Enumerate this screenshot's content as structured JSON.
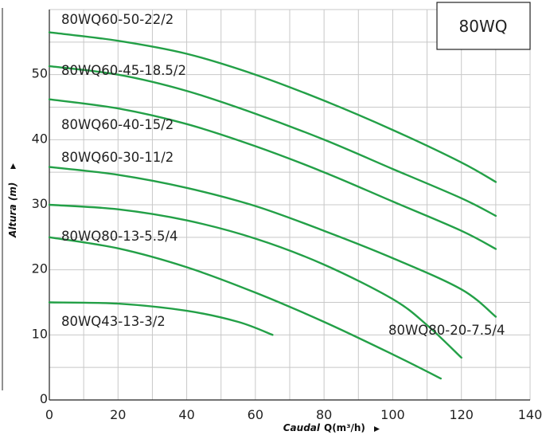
{
  "chart_data": {
    "type": "line",
    "title": "80WQ",
    "xlabel": "Caudal",
    "xlabel_unit": "Q(m³/h)",
    "ylabel": "Altura (m)",
    "xlim": [
      0,
      140
    ],
    "ylim": [
      0,
      60
    ],
    "xticks": [
      0,
      20,
      40,
      60,
      80,
      100,
      120,
      140
    ],
    "yticks": [
      0,
      10,
      20,
      30,
      40,
      50
    ],
    "grid": true,
    "series_color": "#23a047",
    "grid_color": "#c8c8c8",
    "series": [
      {
        "name": "80WQ60-50-22/2",
        "x": [
          0,
          20,
          40,
          60,
          80,
          100,
          120,
          130
        ],
        "y": [
          56.5,
          55.2,
          53.2,
          50.0,
          46.0,
          41.5,
          36.5,
          33.5
        ]
      },
      {
        "name": "80WQ60-45-18.5/2",
        "x": [
          0,
          20,
          40,
          60,
          80,
          100,
          120,
          130
        ],
        "y": [
          51.3,
          50.0,
          47.5,
          44.0,
          40.0,
          35.5,
          31.0,
          28.3
        ]
      },
      {
        "name": "80WQ60-40-15/2",
        "x": [
          0,
          20,
          40,
          60,
          80,
          100,
          120,
          130
        ],
        "y": [
          46.2,
          44.8,
          42.4,
          39.0,
          35.0,
          30.5,
          26.0,
          23.2
        ]
      },
      {
        "name": "80WQ60-30-11/2",
        "x": [
          0,
          20,
          40,
          60,
          80,
          100,
          120,
          130
        ],
        "y": [
          35.8,
          34.6,
          32.6,
          29.8,
          26.0,
          21.8,
          17.0,
          12.8
        ]
      },
      {
        "name": "80WQ80-20-7.5/4",
        "x": [
          0,
          20,
          40,
          60,
          80,
          100,
          110,
          120
        ],
        "y": [
          30.0,
          29.3,
          27.6,
          24.8,
          20.8,
          15.5,
          11.5,
          6.5
        ]
      },
      {
        "name": "80WQ80-13-5.5/4",
        "x": [
          0,
          20,
          40,
          60,
          80,
          100,
          114
        ],
        "y": [
          25.0,
          23.3,
          20.4,
          16.5,
          12.0,
          7.0,
          3.3
        ]
      },
      {
        "name": "80WQ43-13-3/2",
        "x": [
          0,
          20,
          40,
          55,
          65
        ],
        "y": [
          15.0,
          14.8,
          13.7,
          12.0,
          10.0
        ]
      }
    ]
  }
}
